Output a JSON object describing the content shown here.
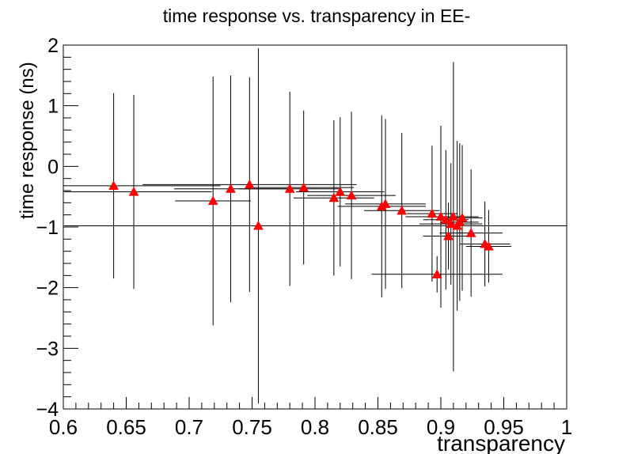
{
  "chart_data": {
    "type": "scatter",
    "title": "time response vs. transparency in EE-",
    "xlabel": "transparency",
    "ylabel": "time response (ns)",
    "xlim": [
      0.6,
      1.0
    ],
    "ylim": [
      -4,
      2
    ],
    "xticks": [
      "0.6",
      "0.65",
      "0.7",
      "0.75",
      "0.8",
      "0.85",
      "0.9",
      "0.95",
      "1"
    ],
    "yticks": [
      "−4",
      "−3",
      "−2",
      "−1",
      "0",
      "1",
      "2"
    ],
    "marker_color": "#ff0000",
    "points": [
      {
        "x": 0.64,
        "y": -0.32,
        "xerr": 0.085,
        "yerr": 1.53
      },
      {
        "x": 0.656,
        "y": -0.42,
        "xerr": 0.062,
        "yerr": 1.6
      },
      {
        "x": 0.719,
        "y": -0.57,
        "xerr": 0.03,
        "yerr": 2.05
      },
      {
        "x": 0.733,
        "y": -0.37,
        "xerr": 0.045,
        "yerr": 1.87
      },
      {
        "x": 0.748,
        "y": -0.3,
        "xerr": 0.085,
        "yerr": 1.77
      },
      {
        "x": 0.755,
        "y": -0.98,
        "xerr": 0.32,
        "yerr": 2.93
      },
      {
        "x": 0.78,
        "y": -0.37,
        "xerr": 0.04,
        "yerr": 1.6
      },
      {
        "x": 0.791,
        "y": -0.35,
        "xerr": 0.04,
        "yerr": 1.27
      },
      {
        "x": 0.815,
        "y": -0.52,
        "xerr": 0.032,
        "yerr": 1.28
      },
      {
        "x": 0.82,
        "y": -0.42,
        "xerr": 0.035,
        "yerr": 1.23
      },
      {
        "x": 0.829,
        "y": -0.48,
        "xerr": 0.035,
        "yerr": 1.38
      },
      {
        "x": 0.853,
        "y": -0.66,
        "xerr": 0.035,
        "yerr": 1.5
      },
      {
        "x": 0.856,
        "y": -0.62,
        "xerr": 0.032,
        "yerr": 1.4
      },
      {
        "x": 0.869,
        "y": -0.73,
        "xerr": 0.03,
        "yerr": 1.28
      },
      {
        "x": 0.893,
        "y": -0.78,
        "xerr": 0.02,
        "yerr": 1.12
      },
      {
        "x": 0.897,
        "y": -1.78,
        "xerr": 0.052,
        "yerr": 0.3
      },
      {
        "x": 0.9,
        "y": -0.83,
        "xerr": 0.028,
        "yerr": 1.5
      },
      {
        "x": 0.904,
        "y": -0.88,
        "xerr": 0.018,
        "yerr": 1.15
      },
      {
        "x": 0.906,
        "y": -1.15,
        "xerr": 0.02,
        "yerr": 0.55
      },
      {
        "x": 0.908,
        "y": -0.95,
        "xerr": 0.025,
        "yerr": 1.0
      },
      {
        "x": 0.91,
        "y": -0.83,
        "xerr": 0.02,
        "yerr": 2.55
      },
      {
        "x": 0.913,
        "y": -0.98,
        "xerr": 0.022,
        "yerr": 1.4
      },
      {
        "x": 0.915,
        "y": -0.92,
        "xerr": 0.015,
        "yerr": 1.3
      },
      {
        "x": 0.917,
        "y": -0.85,
        "xerr": 0.016,
        "yerr": 1.2
      },
      {
        "x": 0.924,
        "y": -1.1,
        "xerr": 0.025,
        "yerr": 1.05
      },
      {
        "x": 0.935,
        "y": -1.28,
        "xerr": 0.02,
        "yerr": 0.7
      },
      {
        "x": 0.938,
        "y": -1.32,
        "xerr": 0.018,
        "yerr": 0.6
      }
    ]
  }
}
